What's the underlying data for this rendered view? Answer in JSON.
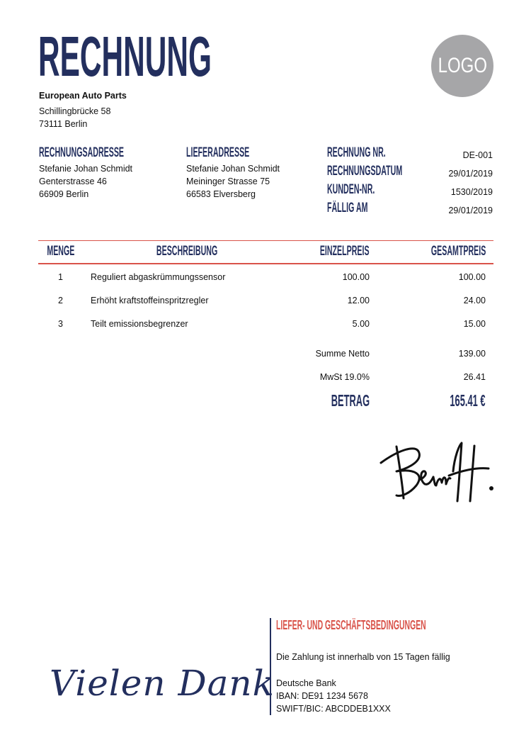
{
  "title": "RECHNUNG",
  "logo_text": "LOGO",
  "sender": {
    "name": "European Auto Parts",
    "street": "Schillingbrücke 58",
    "city": "73111 Berlin"
  },
  "billing": {
    "heading": "RECHNUNGSADRESSE",
    "name": "Stefanie Johan Schmidt",
    "street": "Genterstrasse 46",
    "city": "66909 Berlin"
  },
  "shipping": {
    "heading": "LIEFERADRESSE",
    "name": "Stefanie Johan Schmidt",
    "street": "Meininger Strasse 75",
    "city": "66583 Elversberg"
  },
  "meta": [
    {
      "label": "RECHNUNG NR.",
      "value": "DE-001"
    },
    {
      "label": "RECHNUNGSDATUM",
      "value": "29/01/2019"
    },
    {
      "label": "KUNDEN-NR.",
      "value": "1530/2019"
    },
    {
      "label": "FÄLLIG AM",
      "value": "29/01/2019"
    }
  ],
  "table": {
    "headers": [
      "MENGE",
      "BESCHREIBUNG",
      "EINZELPREIS",
      "GESAMTPREIS"
    ],
    "rows": [
      {
        "qty": "1",
        "desc": "Reguliert abgaskrümmungssensor",
        "unit": "100.00",
        "total": "100.00"
      },
      {
        "qty": "2",
        "desc": "Erhöht kraftstoffeinspritzregler",
        "unit": "12.00",
        "total": "24.00"
      },
      {
        "qty": "3",
        "desc": "Teilt emissionsbegrenzer",
        "unit": "5.00",
        "total": "15.00"
      }
    ]
  },
  "totals": {
    "net_label": "Summe Netto",
    "net": "139.00",
    "tax_label": "MwSt 19.0%",
    "tax": "26.41",
    "total_label": "BETRAG",
    "total": "165.41 €"
  },
  "thanks": "Vielen Dank",
  "terms": {
    "heading": "LIEFER- UND GESCHÄFTSBEDINGUNGEN",
    "payment": "Die Zahlung ist innerhalb von 15 Tagen fällig",
    "bank": "Deutsche Bank",
    "iban": "IBAN: DE91 1234 5678",
    "bic": "SWIFT/BIC: ABCDDEB1XXX"
  },
  "colors": {
    "navy": "#232f5e",
    "red": "#d9534a",
    "logo_gray": "#a6a6a8"
  }
}
